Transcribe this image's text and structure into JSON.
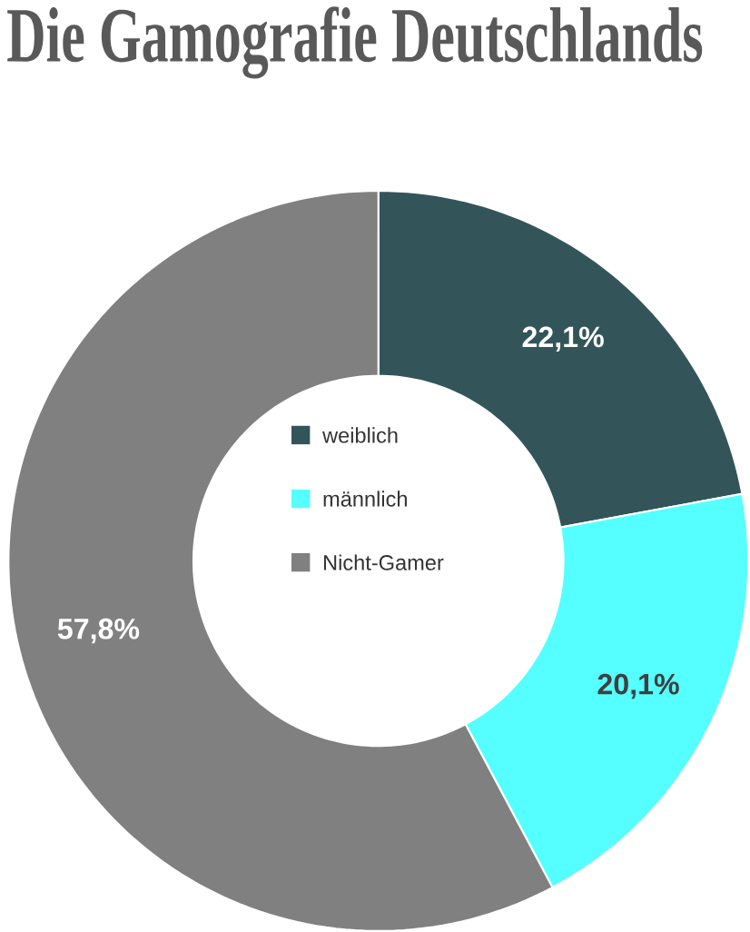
{
  "chart_data": {
    "type": "donut",
    "title": "Die Gamografie Deutschlands",
    "categories": [
      "weiblich",
      "männlich",
      "Nicht-Gamer"
    ],
    "values": [
      22.1,
      20.1,
      57.8
    ],
    "value_labels": [
      "22,1%",
      "20,1%",
      "57,8%"
    ],
    "colors": [
      "#33555a",
      "#55ffff",
      "#808080"
    ],
    "legend": "center"
  }
}
